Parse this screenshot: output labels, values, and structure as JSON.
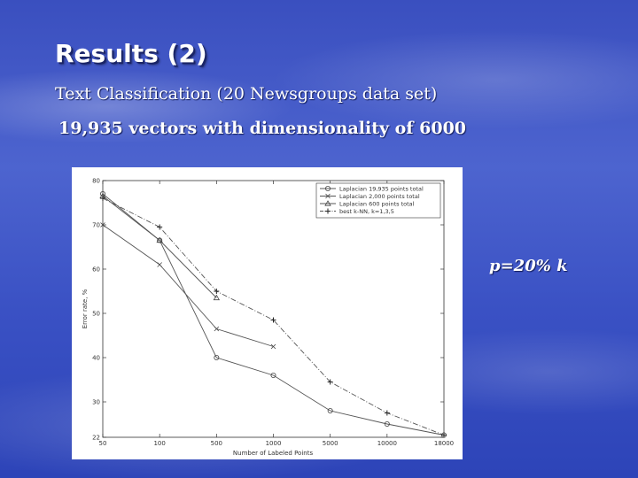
{
  "slide": {
    "title": "Results (2)",
    "subtitle_1": "Text Classification (20 Newsgroups data set)",
    "subtitle_2": "19,935 vectors with dimensionality of 6000",
    "annotation": "p=20% k"
  },
  "chart_data": {
    "type": "line",
    "title": "",
    "xlabel": "Number of Labeled Points",
    "ylabel": "Error rate, %",
    "x_ticks": [
      "50",
      "100",
      "500",
      "1000",
      "5000",
      "10000",
      "18000"
    ],
    "y_ticks": [
      22,
      30,
      40,
      50,
      60,
      70,
      80
    ],
    "ylim": [
      22,
      80
    ],
    "grid": false,
    "legend_position": "top-right",
    "series": [
      {
        "name": "Laplacian 19,935 points total",
        "marker": "circle",
        "style": "solid",
        "x": [
          "50",
          "100",
          "500",
          "1000",
          "5000",
          "10000",
          "18000"
        ],
        "values": [
          77,
          66.5,
          40,
          36,
          28,
          25,
          22.5
        ]
      },
      {
        "name": "Laplacian 2,000 points total",
        "marker": "x",
        "style": "solid",
        "x": [
          "50",
          "100",
          "500",
          "1000"
        ],
        "values": [
          70,
          61,
          46.5,
          42.5
        ]
      },
      {
        "name": "Laplacian 600 points total",
        "marker": "triangle",
        "style": "solid",
        "x": [
          "50",
          "100",
          "500"
        ],
        "values": [
          76.5,
          66.5,
          53.5
        ]
      },
      {
        "name": "best k-NN, k=1,3,5",
        "marker": "plus",
        "style": "dashdot",
        "x": [
          "50",
          "100",
          "500",
          "1000",
          "5000",
          "10000",
          "18000"
        ],
        "values": [
          76,
          69.5,
          55,
          48.5,
          34.5,
          27.5,
          22.5
        ]
      }
    ]
  }
}
